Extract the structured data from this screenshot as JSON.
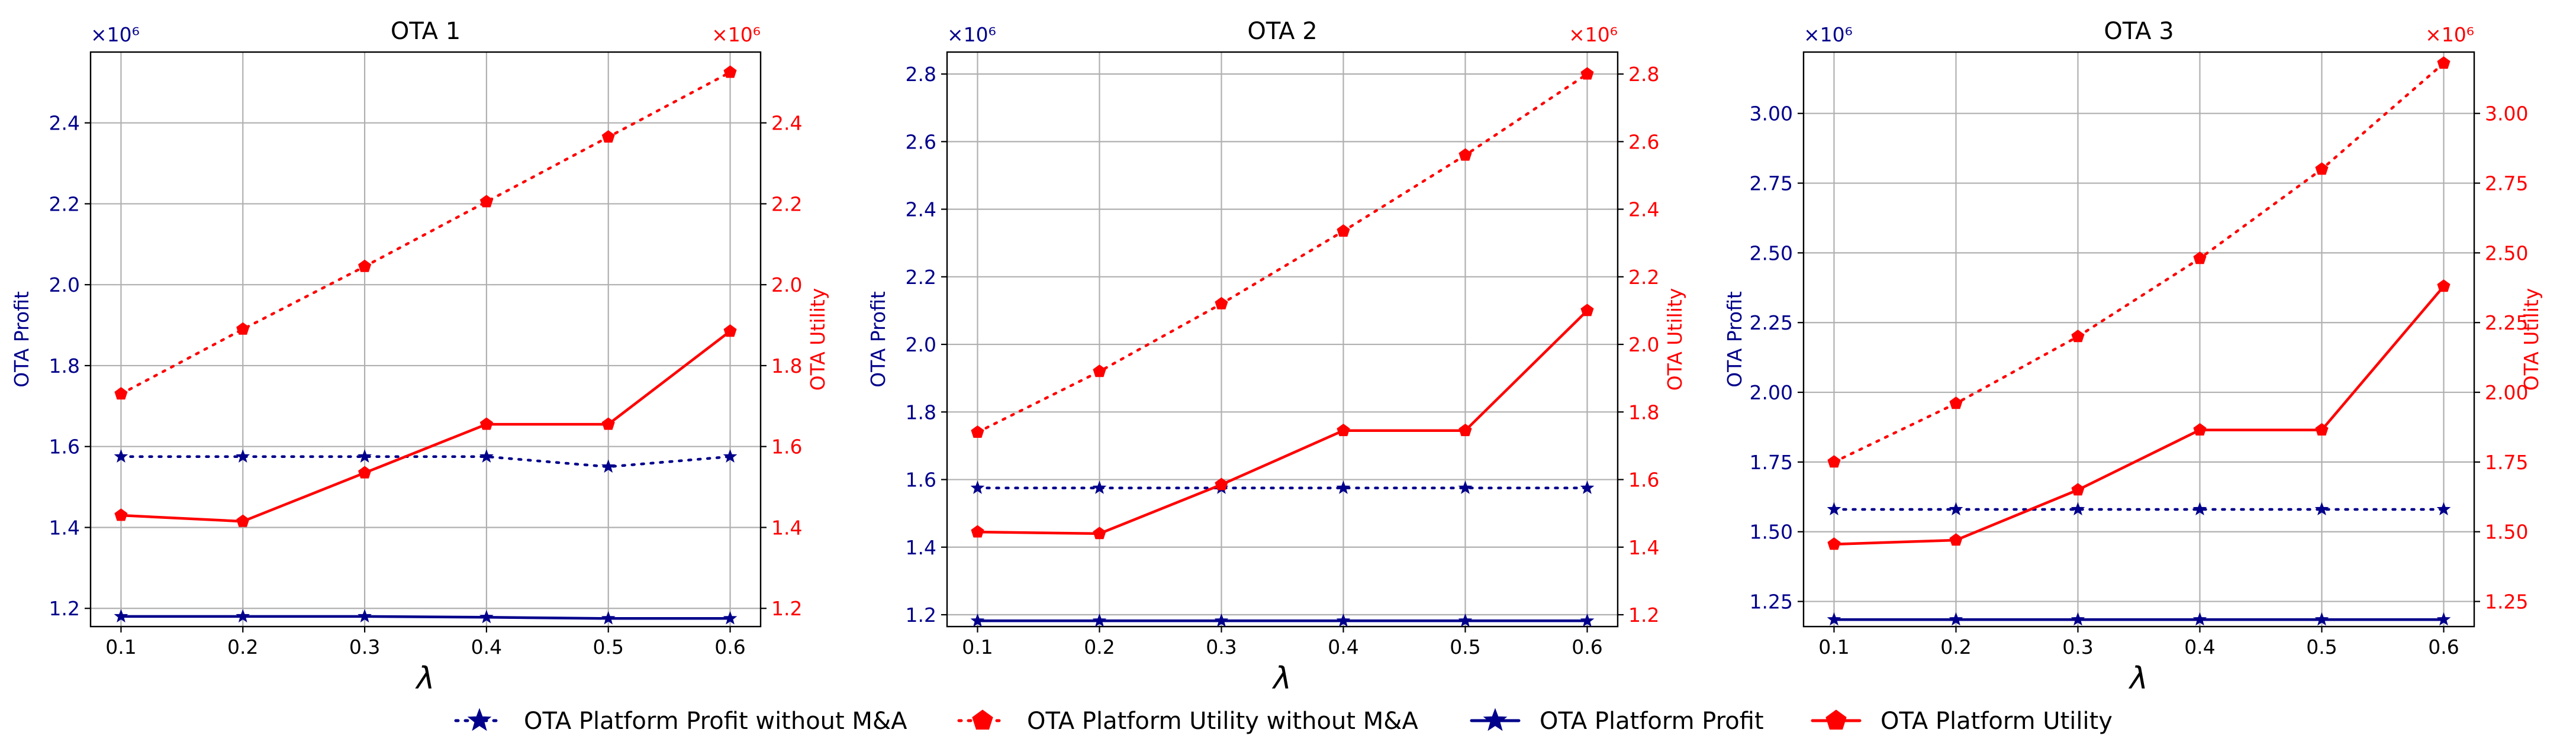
{
  "colors": {
    "profit": "#00008b",
    "utility": "#ff0000",
    "grid": "#b0b0b0",
    "axis": "#000000"
  },
  "exponent_label": "×10⁶",
  "legend": [
    {
      "label": "OTA Platform Profit without M&A",
      "series": "profit_without",
      "color": "#00008b",
      "dash": "dotted",
      "marker": "star"
    },
    {
      "label": "OTA Platform Utility without M&A",
      "series": "utility_without",
      "color": "#ff0000",
      "dash": "dotted",
      "marker": "pentagon"
    },
    {
      "label": "OTA Platform Profit",
      "series": "profit",
      "color": "#00008b",
      "dash": "solid",
      "marker": "star"
    },
    {
      "label": "OTA Platform Utility",
      "series": "utility",
      "color": "#ff0000",
      "dash": "solid",
      "marker": "pentagon"
    }
  ],
  "chart_data": [
    {
      "type": "line",
      "title": "OTA 1",
      "xlabel": "λ",
      "ylabel_left": "OTA Profit",
      "ylabel_right": "OTA Utility",
      "x": [
        0.1,
        0.2,
        0.3,
        0.4,
        0.5,
        0.6
      ],
      "x_ticks": [
        "0.1",
        "0.2",
        "0.3",
        "0.4",
        "0.5",
        "0.6"
      ],
      "xlim": [
        0.075,
        0.625
      ],
      "ylim_left": [
        1.155,
        2.575
      ],
      "ylim_right": [
        1.155,
        2.575
      ],
      "y_ticks_left": [
        "1.2",
        "1.4",
        "1.6",
        "1.8",
        "2.0",
        "2.2",
        "2.4"
      ],
      "y_ticks_right": [
        "1.2",
        "1.4",
        "1.6",
        "1.8",
        "2.0",
        "2.2",
        "2.4"
      ],
      "grid": true,
      "series": [
        {
          "key": "profit_without",
          "name": "OTA Platform Profit without M&A",
          "axis": "left",
          "values": [
            1.575,
            1.575,
            1.575,
            1.575,
            1.55,
            1.575
          ]
        },
        {
          "key": "utility_without",
          "name": "OTA Platform Utility without M&A",
          "axis": "right",
          "values": [
            1.73,
            1.89,
            2.045,
            2.205,
            2.365,
            2.525
          ]
        },
        {
          "key": "profit",
          "name": "OTA Platform Profit",
          "axis": "left",
          "values": [
            1.18,
            1.18,
            1.18,
            1.178,
            1.175,
            1.175
          ]
        },
        {
          "key": "utility",
          "name": "OTA Platform Utility",
          "axis": "right",
          "values": [
            1.43,
            1.415,
            1.535,
            1.655,
            1.655,
            1.885
          ]
        }
      ]
    },
    {
      "type": "line",
      "title": "OTA 2",
      "xlabel": "λ",
      "ylabel_left": "OTA Profit",
      "ylabel_right": "OTA Utility",
      "x": [
        0.1,
        0.2,
        0.3,
        0.4,
        0.5,
        0.6
      ],
      "x_ticks": [
        "0.1",
        "0.2",
        "0.3",
        "0.4",
        "0.5",
        "0.6"
      ],
      "xlim": [
        0.075,
        0.625
      ],
      "ylim_left": [
        1.165,
        2.865
      ],
      "ylim_right": [
        1.165,
        2.865
      ],
      "y_ticks_left": [
        "1.2",
        "1.4",
        "1.6",
        "1.8",
        "2.0",
        "2.2",
        "2.4",
        "2.6",
        "2.8"
      ],
      "y_ticks_right": [
        "1.2",
        "1.4",
        "1.6",
        "1.8",
        "2.0",
        "2.2",
        "2.4",
        "2.6",
        "2.8"
      ],
      "grid": true,
      "series": [
        {
          "key": "profit_without",
          "name": "OTA Platform Profit without M&A",
          "axis": "left",
          "values": [
            1.575,
            1.575,
            1.575,
            1.575,
            1.575,
            1.575
          ]
        },
        {
          "key": "utility_without",
          "name": "OTA Platform Utility without M&A",
          "axis": "right",
          "values": [
            1.74,
            1.92,
            2.12,
            2.335,
            2.56,
            2.8
          ]
        },
        {
          "key": "profit",
          "name": "OTA Platform Profit",
          "axis": "left",
          "values": [
            1.182,
            1.182,
            1.182,
            1.182,
            1.182,
            1.182
          ]
        },
        {
          "key": "utility",
          "name": "OTA Platform Utility",
          "axis": "right",
          "values": [
            1.445,
            1.44,
            1.585,
            1.745,
            1.745,
            2.1
          ]
        }
      ]
    },
    {
      "type": "line",
      "title": "OTA 3",
      "xlabel": "λ",
      "ylabel_left": "OTA Profit",
      "ylabel_right": "OTA Utility",
      "x": [
        0.1,
        0.2,
        0.3,
        0.4,
        0.5,
        0.6
      ],
      "x_ticks": [
        "0.1",
        "0.2",
        "0.3",
        "0.4",
        "0.5",
        "0.6"
      ],
      "xlim": [
        0.075,
        0.625
      ],
      "ylim_left": [
        1.16,
        3.22
      ],
      "ylim_right": [
        1.16,
        3.22
      ],
      "y_ticks_left": [
        "1.25",
        "1.50",
        "1.75",
        "2.00",
        "2.25",
        "2.50",
        "2.75",
        "3.00"
      ],
      "y_ticks_right": [
        "1.25",
        "1.50",
        "1.75",
        "2.00",
        "2.25",
        "2.50",
        "2.75",
        "3.00"
      ],
      "grid": true,
      "series": [
        {
          "key": "profit_without",
          "name": "OTA Platform Profit without M&A",
          "axis": "left",
          "values": [
            1.58,
            1.58,
            1.58,
            1.58,
            1.58,
            1.58
          ]
        },
        {
          "key": "utility_without",
          "name": "OTA Platform Utility without M&A",
          "axis": "right",
          "values": [
            1.75,
            1.96,
            2.2,
            2.48,
            2.8,
            3.18
          ]
        },
        {
          "key": "profit",
          "name": "OTA Platform Profit",
          "axis": "left",
          "values": [
            1.185,
            1.185,
            1.185,
            1.185,
            1.185,
            1.185
          ]
        },
        {
          "key": "utility",
          "name": "OTA Platform Utility",
          "axis": "right",
          "values": [
            1.455,
            1.47,
            1.65,
            1.865,
            1.865,
            2.38
          ]
        }
      ]
    }
  ]
}
